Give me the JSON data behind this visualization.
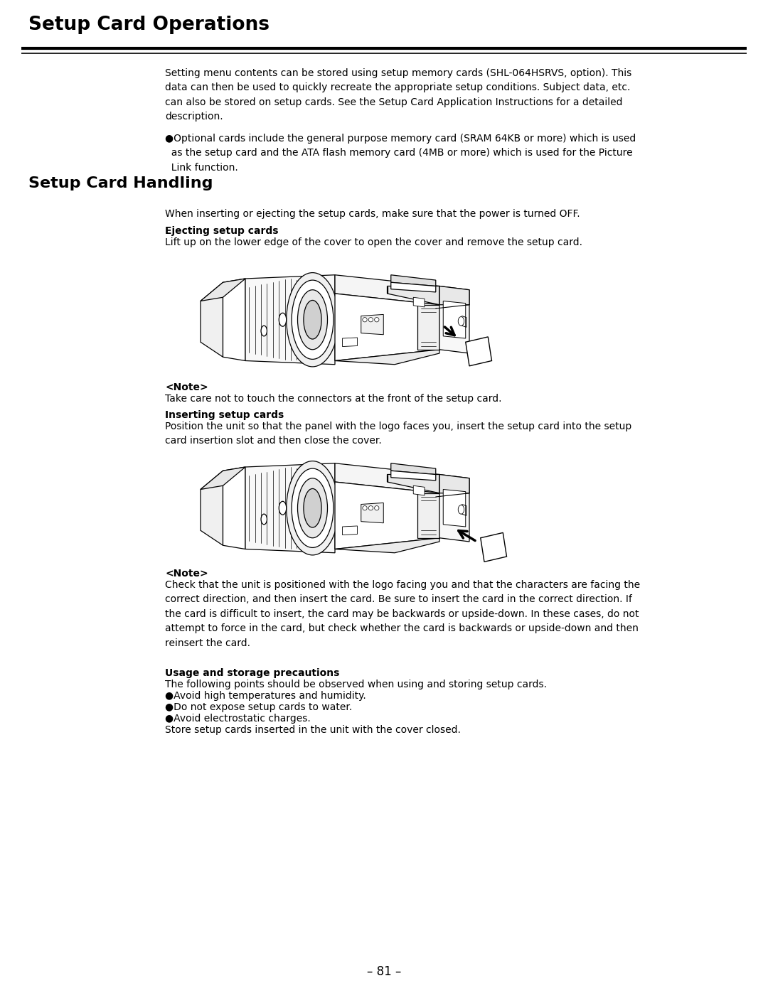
{
  "page_title": "Setup Card Operations",
  "page_number": "– 81 –",
  "bg_color": "#ffffff",
  "text_color": "#000000",
  "title_fontsize": 19,
  "section_fontsize": 16,
  "body_fontsize": 10.0,
  "bold_fontsize": 10.0,
  "intro_text": "Setting menu contents can be stored using setup memory cards (SHL-064HSRVS, option). This\ndata can then be used to quickly recreate the appropriate setup conditions. Subject data, etc.\ncan also be stored on setup cards. See the Setup Card Application Instructions for a detailed\ndescription.",
  "bullet_text": "●Optional cards include the general purpose memory card (SRAM 64KB or more) which is used\n  as the setup card and the ATA flash memory card (4MB or more) which is used for the Picture\n  Link function.",
  "section2_title": "Setup Card Handling",
  "handling_intro": "When inserting or ejecting the setup cards, make sure that the power is turned OFF.",
  "eject_title": "Ejecting setup cards",
  "eject_text": "Lift up on the lower edge of the cover to open the cover and remove the setup card.",
  "note1_title": "<Note>",
  "note1_text": "Take care not to touch the connectors at the front of the setup card.",
  "insert_title": "Inserting setup cards",
  "insert_text": "Position the unit so that the panel with the logo faces you, insert the setup card into the setup\ncard insertion slot and then close the cover.",
  "note2_title": "<Note>",
  "note2_text": "Check that the unit is positioned with the logo facing you and that the characters are facing the\ncorrect direction, and then insert the card. Be sure to insert the card in the correct direction. If\nthe card is difficult to insert, the card may be backwards or upside-down. In these cases, do not\nattempt to force in the card, but check whether the card is backwards or upside-down and then\nreinsert the card.",
  "usage_title": "Usage and storage precautions",
  "usage_text": "The following points should be observed when using and storing setup cards.",
  "usage_bullets": [
    "●Avoid high temperatures and humidity.",
    "●Do not expose setup cards to water.",
    "●Avoid electrostatic charges.",
    "Store setup cards inserted in the unit with the cover closed."
  ]
}
